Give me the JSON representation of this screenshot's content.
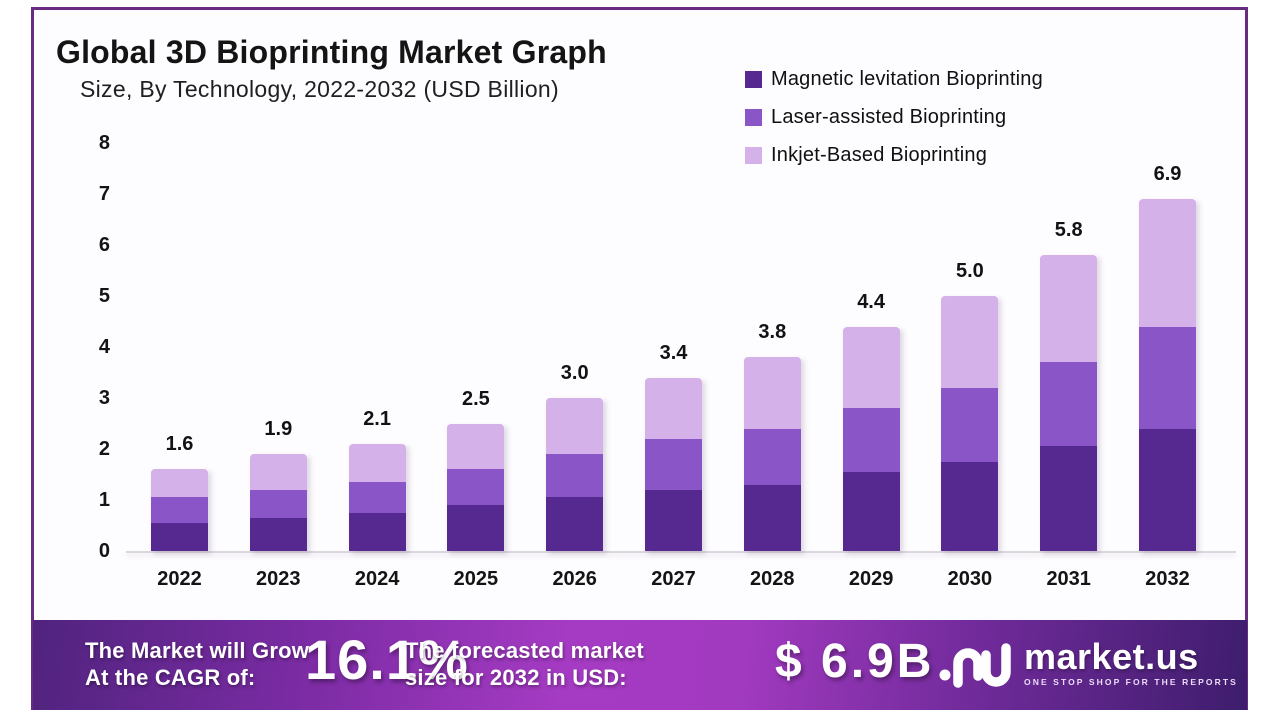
{
  "header": {
    "title": "Global 3D Bioprinting Market Graph",
    "subtitle": "Size, By Technology, 2022-2032 (USD Billion)"
  },
  "chart_data": {
    "type": "bar",
    "stacked": true,
    "title": "Global 3D Bioprinting Market Graph",
    "subtitle": "Size, By Technology, 2022-2032 (USD Billion)",
    "unit": "USD Billion",
    "categories": [
      "2022",
      "2023",
      "2024",
      "2025",
      "2026",
      "2027",
      "2028",
      "2029",
      "2030",
      "2031",
      "2032"
    ],
    "series": [
      {
        "name": "Magnetic levitation Bioprinting",
        "color": "#55298f",
        "values": [
          0.55,
          0.65,
          0.75,
          0.9,
          1.05,
          1.2,
          1.3,
          1.55,
          1.75,
          2.05,
          2.4
        ]
      },
      {
        "name": "Laser-assisted Bioprinting",
        "color": "#8a56c7",
        "values": [
          0.5,
          0.55,
          0.6,
          0.7,
          0.85,
          1.0,
          1.1,
          1.25,
          1.45,
          1.65,
          2.0
        ]
      },
      {
        "name": "Inkjet-Based Bioprinting",
        "color": "#d5b1e9",
        "values": [
          0.55,
          0.7,
          0.75,
          0.9,
          1.1,
          1.2,
          1.4,
          1.6,
          1.8,
          2.1,
          2.5
        ]
      }
    ],
    "totals": [
      "1.6",
      "1.9",
      "2.1",
      "2.5",
      "3.0",
      "3.4",
      "3.8",
      "4.4",
      "5.0",
      "5.8",
      "6.9"
    ],
    "yticks": [
      "0",
      "1",
      "2",
      "3",
      "4",
      "5",
      "6",
      "7",
      "8"
    ],
    "ylim": [
      0,
      8
    ],
    "grid": false,
    "legend_position": "top-right"
  },
  "banner": {
    "cagr_label_line1": "The Market will Grow",
    "cagr_label_line2": "At the CAGR of:",
    "cagr_value": "16.1%",
    "forecast_label_line1": "The forecasted market",
    "forecast_label_line2": "size for 2032 in USD:",
    "forecast_value": "$ 6.9B",
    "logo": {
      "name": "market.us",
      "tagline": "ONE STOP SHOP FOR THE REPORTS"
    }
  },
  "colors": {
    "frame_border": "#682b80",
    "banner_gradient_mid": "#a53bc3",
    "banner_gradient_edge": "#43206f"
  }
}
